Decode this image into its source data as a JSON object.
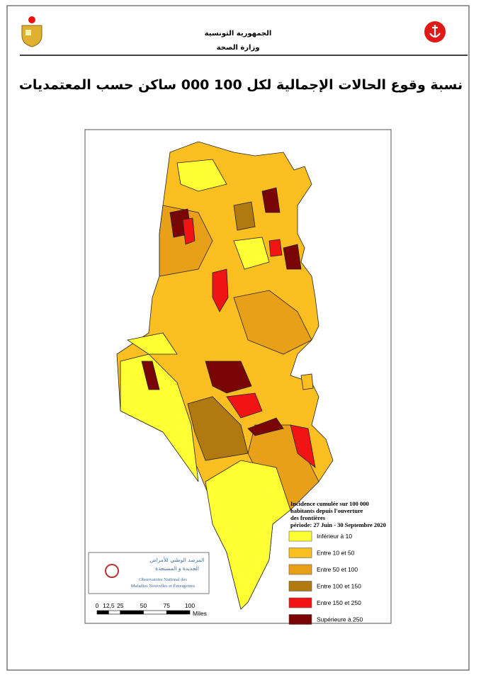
{
  "header": {
    "line1": "الجمهورية التونسية",
    "line2": "وزارة الصحة"
  },
  "title": "نسبة وقوع الحالات الإجمالية لكل 100 000 ساكن حسب المعتمديات",
  "legend": {
    "title_lines": [
      "Incidence cumulée sur 100 000",
      "habitants depuis l'ouverture",
      "des frontières",
      "période: 27 Juin  - 30 Septembre 2020"
    ],
    "items": [
      {
        "label": "Inférieur à 10",
        "color": "#ffff33"
      },
      {
        "label": "Entre 10 et 50",
        "color": "#fcbf22"
      },
      {
        "label": "Entre 50 et 100",
        "color": "#e8a019"
      },
      {
        "label": "Entre 100 et 150",
        "color": "#b07a10"
      },
      {
        "label": "Entre 150 et 250",
        "color": "#f01414"
      },
      {
        "label": "Supérieure à 250",
        "color": "#7a0505"
      }
    ]
  },
  "scale": {
    "labels": [
      "0",
      "12,5",
      "25",
      "50",
      "75",
      "100"
    ],
    "unit": "Miles"
  },
  "logo": {
    "arabic_line1": "المرصد الوطني للأمراض",
    "arabic_line2": "الجديدة و المستجدة",
    "french_line1": "Observatoire National des",
    "french_line2": "Maladies Nouvelles et Émergentes"
  }
}
